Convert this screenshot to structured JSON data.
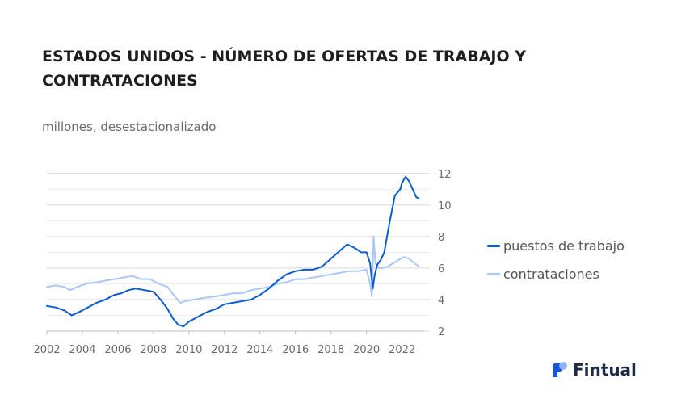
{
  "title": "ESTADOS UNIDOS - NÚMERO DE OFERTAS DE TRABAJO Y CONTRATACIONES",
  "subtitle": "millones, desestacionalizado",
  "brand": {
    "name": "Fintual",
    "icon": "fintual-logo-icon",
    "colors": {
      "primary": "#1a56db",
      "light": "#8fb4f5"
    }
  },
  "chart_data": {
    "type": "line",
    "title": "ESTADOS UNIDOS - NÚMERO DE OFERTAS DE TRABAJO Y CONTRATACIONES",
    "subtitle": "millones, desestacionalizado",
    "xlabel": "",
    "ylabel": "",
    "xlim": [
      2002,
      2023.2
    ],
    "ylim": [
      2,
      12.5
    ],
    "x_ticks": [
      2002,
      2004,
      2006,
      2008,
      2010,
      2012,
      2014,
      2016,
      2018,
      2020,
      2022
    ],
    "y_ticks": [
      2,
      4,
      6,
      8,
      10,
      12
    ],
    "y_axis_side": "right",
    "grid": true,
    "legend_position": "right",
    "series": [
      {
        "name": "puestos de trabajo",
        "color": "#0b5bd1",
        "x": [
          2002.0,
          2002.5,
          2003.0,
          2003.4,
          2003.8,
          2004.3,
          2004.8,
          2005.3,
          2005.8,
          2006.2,
          2006.6,
          2007.0,
          2007.5,
          2008.0,
          2008.4,
          2008.8,
          2009.1,
          2009.4,
          2009.7,
          2010.0,
          2010.5,
          2011.0,
          2011.5,
          2012.0,
          2012.5,
          2013.0,
          2013.5,
          2014.0,
          2014.5,
          2015.0,
          2015.5,
          2016.0,
          2016.5,
          2017.0,
          2017.5,
          2018.0,
          2018.5,
          2018.9,
          2019.3,
          2019.7,
          2020.0,
          2020.2,
          2020.35,
          2020.45,
          2020.6,
          2020.8,
          2021.0,
          2021.3,
          2021.6,
          2021.9,
          2022.0,
          2022.2,
          2022.4,
          2022.6,
          2022.8,
          2022.95
        ],
        "values": [
          3.6,
          3.5,
          3.3,
          3.0,
          3.2,
          3.5,
          3.8,
          4.0,
          4.3,
          4.4,
          4.6,
          4.7,
          4.6,
          4.5,
          4.0,
          3.4,
          2.8,
          2.4,
          2.3,
          2.6,
          2.9,
          3.2,
          3.4,
          3.7,
          3.8,
          3.9,
          4.0,
          4.3,
          4.7,
          5.2,
          5.6,
          5.8,
          5.9,
          5.9,
          6.1,
          6.6,
          7.1,
          7.5,
          7.3,
          7.0,
          7.0,
          6.3,
          4.7,
          5.5,
          6.2,
          6.5,
          7.0,
          8.9,
          10.6,
          11.0,
          11.4,
          11.8,
          11.5,
          11.0,
          10.5,
          10.4
        ]
      },
      {
        "name": "contrataciones",
        "color": "#a9c8f5",
        "x": [
          2002.0,
          2002.5,
          2003.0,
          2003.3,
          2003.7,
          2004.2,
          2004.8,
          2005.3,
          2005.8,
          2006.3,
          2006.8,
          2007.3,
          2007.8,
          2008.3,
          2008.8,
          2009.2,
          2009.5,
          2009.8,
          2010.3,
          2010.8,
          2011.5,
          2012.0,
          2012.5,
          2013.0,
          2013.5,
          2014.0,
          2014.5,
          2015.0,
          2015.5,
          2016.0,
          2016.5,
          2017.0,
          2017.5,
          2018.0,
          2018.5,
          2019.0,
          2019.5,
          2020.0,
          2020.2,
          2020.3,
          2020.4,
          2020.5,
          2020.7,
          2020.9,
          2021.2,
          2021.5,
          2021.8,
          2022.1,
          2022.4,
          2022.7,
          2022.95
        ],
        "values": [
          4.8,
          4.9,
          4.8,
          4.6,
          4.8,
          5.0,
          5.1,
          5.2,
          5.3,
          5.4,
          5.5,
          5.3,
          5.3,
          5.0,
          4.8,
          4.2,
          3.8,
          3.9,
          4.0,
          4.1,
          4.2,
          4.3,
          4.4,
          4.4,
          4.6,
          4.7,
          4.8,
          5.0,
          5.1,
          5.3,
          5.3,
          5.4,
          5.5,
          5.6,
          5.7,
          5.8,
          5.8,
          5.9,
          5.0,
          4.2,
          8.0,
          6.3,
          6.0,
          6.0,
          6.1,
          6.3,
          6.5,
          6.7,
          6.6,
          6.3,
          6.1
        ]
      }
    ]
  }
}
